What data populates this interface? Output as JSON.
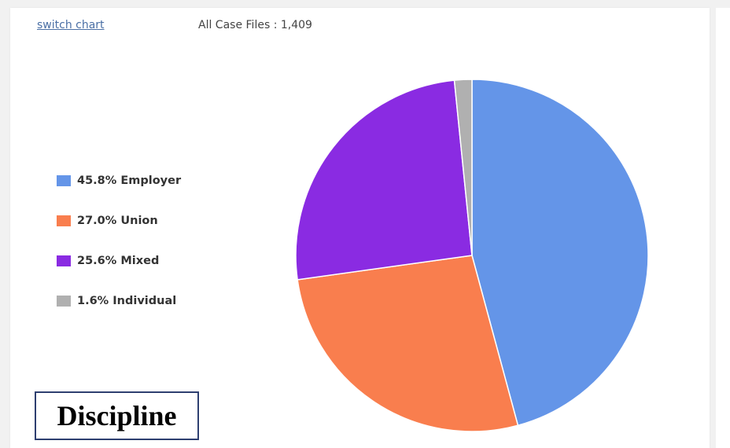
{
  "toolbar": {
    "switch_label": "switch chart",
    "case_files_text": "All Case Files : 1,409"
  },
  "caption": "Discipline",
  "chart_data": {
    "type": "pie",
    "slices": [
      {
        "label": "45.8% Employer",
        "name": "Employer",
        "value": 45.8,
        "color": "#6495e8"
      },
      {
        "label": "27.0% Union",
        "name": "Union",
        "value": 27.0,
        "color": "#f97e4e"
      },
      {
        "label": "25.6% Mixed",
        "name": "Mixed",
        "value": 25.6,
        "color": "#8a2be2"
      },
      {
        "label": "1.6% Individual",
        "name": "Individual",
        "value": 1.6,
        "color": "#b0b0b0"
      }
    ],
    "legend_position": "left",
    "start_angle": "top",
    "direction": "clockwise"
  }
}
